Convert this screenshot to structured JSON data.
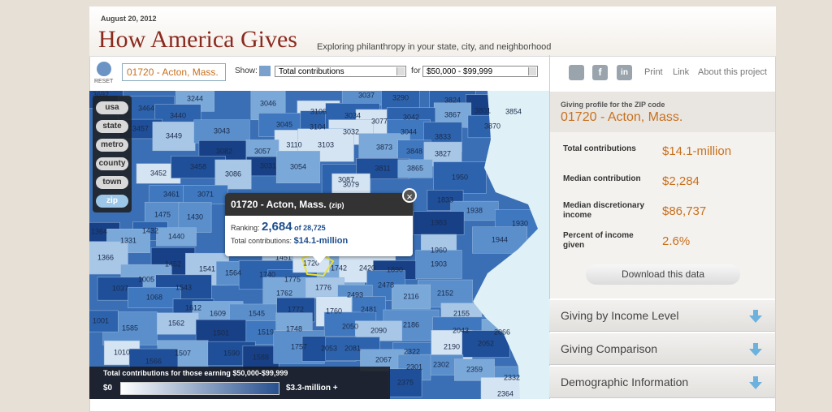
{
  "header": {
    "date": "August 20, 2012",
    "title": "How America Gives",
    "subtitle": "Exploring philanthropy in your state, city, and neighborhood"
  },
  "toolbar": {
    "reset": "RESET",
    "search": "01720 - Acton, Mass.",
    "show_label": "Show:",
    "measure": "Total contributions",
    "for_label": "for",
    "income": "$50,000 - $99,999",
    "social": [
      "f",
      "in"
    ],
    "links": [
      "Print",
      "Link",
      "About this project"
    ]
  },
  "map": {
    "zoom_levels": [
      "usa",
      "state",
      "metro",
      "county",
      "town",
      "zip"
    ],
    "zip_labels": [
      "3692",
      "3244",
      "3046",
      "3106",
      "3037",
      "3290",
      "3824",
      "3801",
      "3854",
      "3867",
      "3870",
      "3464",
      "3440",
      "3045",
      "3104",
      "3034",
      "3077",
      "3042",
      "3457",
      "3449",
      "3043",
      "3032",
      "3044",
      "3833",
      "3110",
      "3103",
      "3873",
      "3848",
      "3827",
      "3082",
      "3057",
      "3031",
      "3054",
      "3452",
      "3458",
      "3086",
      "3087",
      "3811",
      "3865",
      "1950",
      "3461",
      "3071",
      "3079",
      "1833",
      "1938",
      "1475",
      "1430",
      "1983",
      "1930",
      "1364",
      "1432",
      "1440",
      "1331",
      "1944",
      "1960",
      "1366",
      "1452",
      "1451",
      "1742",
      "2420",
      "1890",
      "1903",
      "1005",
      "1541",
      "1564",
      "1740",
      "1775",
      "1037",
      "1543",
      "1776",
      "2478",
      "2152",
      "1068",
      "1762",
      "2493",
      "2116",
      "1612",
      "1609",
      "1545",
      "1772",
      "1760",
      "2481",
      "2155",
      "1562",
      "1585",
      "2186",
      "1001",
      "1501",
      "1519",
      "1748",
      "2050",
      "2090",
      "2043",
      "2066",
      "1010",
      "1507",
      "1590",
      "1588",
      "1757",
      "2053",
      "2081",
      "2322",
      "2190",
      "2052",
      "2302",
      "2359",
      "2067",
      "1566",
      "2301",
      "2375",
      "2332",
      "2364",
      "1720"
    ],
    "popup": {
      "title": "01720 - Acton, Mass.",
      "kind": "(zip)",
      "ranking_label": "Ranking:",
      "rank": "2,684",
      "rank_of": "of 28,725",
      "contrib_label": "Total contributions:",
      "contrib": "$14.1-million"
    },
    "legend": {
      "title": "Total contributions for those earning $50,000-$99,999",
      "min": "$0",
      "max": "$3.3-million +"
    }
  },
  "profile": {
    "heading": "Giving profile for the ZIP code",
    "place": "01720 - Acton, Mass.",
    "rows": [
      [
        "Total contributions",
        "$14.1-million"
      ],
      [
        "Median contribution",
        "$2,284"
      ],
      [
        "Median discretionary income",
        "$86,737"
      ],
      [
        "Percent of income given",
        "2.6%"
      ]
    ],
    "download": "Download this data",
    "sections": [
      "Giving by Income Level",
      "Giving Comparison",
      "Demographic Information"
    ]
  }
}
